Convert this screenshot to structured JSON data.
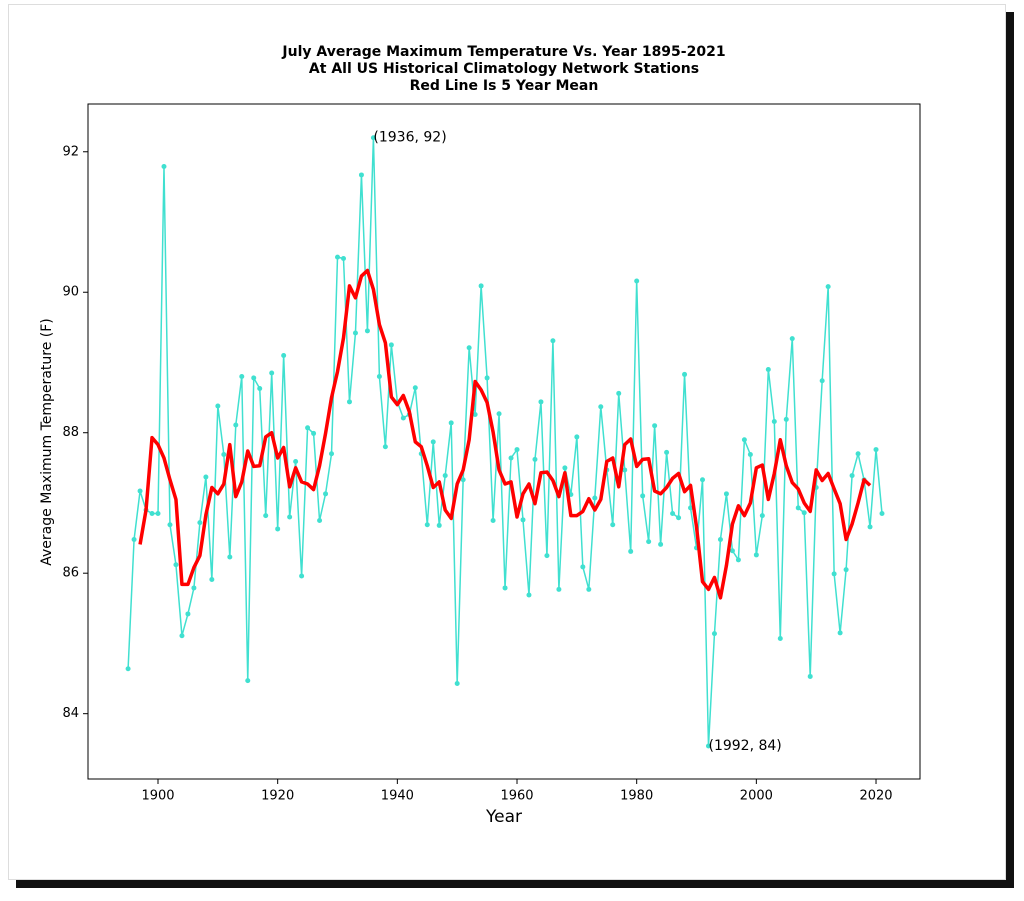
{
  "chart_data": {
    "type": "line",
    "title": [
      "July Average Maximum Temperature Vs. Year 1895-2021",
      "At All US Historical Climatology Network Stations",
      "Red Line Is 5 Year Mean"
    ],
    "x_label": "Year",
    "y_label": "Average Maximum Temperature (F)",
    "xlim": [
      1888.3,
      2027.35
    ],
    "ylim": [
      83.07,
      92.68
    ],
    "xticks": [
      1900,
      1920,
      1940,
      1960,
      1980,
      2000,
      2020
    ],
    "yticks": [
      84,
      86,
      88,
      90,
      92
    ],
    "grid": false,
    "series": [
      {
        "color": "#40e0d0",
        "markers": true,
        "line_width": 1.5,
        "x": [
          1895,
          1896,
          1897,
          1898,
          1899,
          1900,
          1901,
          1902,
          1903,
          1904,
          1905,
          1906,
          1907,
          1908,
          1909,
          1910,
          1911,
          1912,
          1913,
          1914,
          1915,
          1916,
          1917,
          1918,
          1919,
          1920,
          1921,
          1922,
          1923,
          1924,
          1925,
          1926,
          1927,
          1928,
          1929,
          1930,
          1931,
          1932,
          1933,
          1934,
          1935,
          1936,
          1937,
          1938,
          1939,
          1940,
          1941,
          1942,
          1943,
          1944,
          1945,
          1946,
          1947,
          1948,
          1949,
          1950,
          1951,
          1952,
          1953,
          1954,
          1955,
          1956,
          1957,
          1958,
          1959,
          1960,
          1961,
          1962,
          1963,
          1964,
          1965,
          1966,
          1967,
          1968,
          1969,
          1970,
          1971,
          1972,
          1973,
          1974,
          1975,
          1976,
          1977,
          1978,
          1979,
          1980,
          1981,
          1982,
          1983,
          1984,
          1985,
          1986,
          1987,
          1988,
          1989,
          1990,
          1991,
          1992,
          1993,
          1994,
          1995,
          1996,
          1997,
          1998,
          1999,
          2000,
          2001,
          2002,
          2003,
          2004,
          2005,
          2006,
          2007,
          2008,
          2009,
          2010,
          2011,
          2012,
          2013,
          2014,
          2015,
          2016,
          2017,
          2018,
          2019,
          2020,
          2021
        ],
        "values": [
          84.64,
          86.48,
          87.17,
          86.9,
          86.85,
          86.85,
          91.79,
          86.69,
          86.12,
          85.11,
          85.42,
          85.79,
          86.72,
          87.37,
          85.91,
          88.38,
          87.69,
          86.23,
          88.11,
          88.8,
          84.47,
          88.78,
          88.63,
          86.82,
          88.85,
          86.63,
          89.1,
          86.8,
          87.59,
          85.96,
          88.07,
          87.99,
          86.75,
          87.13,
          87.7,
          90.5,
          90.48,
          88.44,
          89.42,
          91.67,
          89.45,
          92.2,
          88.8,
          87.8,
          89.25,
          88.44,
          88.21,
          88.26,
          88.64,
          87.7,
          86.69,
          87.87,
          86.68,
          87.39,
          88.14,
          84.43,
          87.33,
          89.21,
          88.26,
          90.09,
          88.78,
          86.75,
          88.27,
          85.79,
          87.64,
          87.76,
          86.76,
          85.69,
          87.62,
          88.44,
          86.25,
          89.31,
          85.77,
          87.5,
          87.12,
          87.94,
          86.09,
          85.77,
          87.07,
          88.37,
          87.47,
          86.69,
          88.56,
          87.47,
          86.31,
          90.16,
          87.1,
          86.45,
          88.1,
          86.41,
          87.72,
          86.85,
          86.79,
          88.83,
          86.93,
          86.36,
          87.33,
          83.54,
          85.14,
          86.48,
          87.13,
          86.32,
          86.19,
          87.9,
          87.69,
          86.26,
          86.82,
          88.9,
          88.16,
          85.07,
          88.19,
          89.34,
          86.93,
          86.86,
          84.53,
          87.22,
          88.74,
          90.08,
          85.99,
          85.15,
          86.05,
          87.39,
          87.7,
          87.33,
          86.66,
          87.76,
          86.85
        ]
      },
      {
        "color": "#ff0000",
        "markers": false,
        "line_width": 3.5,
        "x": [
          1897,
          1898,
          1899,
          1900,
          1901,
          1902,
          1903,
          1904,
          1905,
          1906,
          1907,
          1908,
          1909,
          1910,
          1911,
          1912,
          1913,
          1914,
          1915,
          1916,
          1917,
          1918,
          1919,
          1920,
          1921,
          1922,
          1923,
          1924,
          1925,
          1926,
          1927,
          1928,
          1929,
          1930,
          1931,
          1932,
          1933,
          1934,
          1935,
          1936,
          1937,
          1938,
          1939,
          1940,
          1941,
          1942,
          1943,
          1944,
          1945,
          1946,
          1947,
          1948,
          1949,
          1950,
          1951,
          1952,
          1953,
          1954,
          1955,
          1956,
          1957,
          1958,
          1959,
          1960,
          1961,
          1962,
          1963,
          1964,
          1965,
          1966,
          1967,
          1968,
          1969,
          1970,
          1971,
          1972,
          1973,
          1974,
          1975,
          1976,
          1977,
          1978,
          1979,
          1980,
          1981,
          1982,
          1983,
          1984,
          1985,
          1986,
          1987,
          1988,
          1989,
          1990,
          1991,
          1992,
          1993,
          1994,
          1995,
          1996,
          1997,
          1998,
          1999,
          2000,
          2001,
          2002,
          2003,
          2004,
          2005,
          2006,
          2007,
          2008,
          2009,
          2010,
          2011,
          2012,
          2013,
          2014,
          2015,
          2016,
          2017,
          2018,
          2019
        ],
        "values": [
          86.41,
          86.9,
          87.93,
          87.83,
          87.64,
          87.33,
          87.05,
          85.84,
          85.84,
          86.08,
          86.25,
          86.83,
          87.22,
          87.13,
          87.27,
          87.83,
          87.09,
          87.3,
          87.74,
          87.52,
          87.53,
          87.94,
          88.0,
          87.64,
          87.79,
          87.23,
          87.5,
          87.3,
          87.27,
          87.19,
          87.53,
          87.99,
          88.5,
          88.87,
          89.35,
          90.09,
          89.92,
          90.23,
          90.31,
          90.04,
          89.54,
          89.28,
          88.51,
          88.4,
          88.53,
          88.3,
          87.87,
          87.8,
          87.53,
          87.22,
          87.3,
          86.9,
          86.78,
          87.27,
          87.47,
          87.9,
          88.73,
          88.61,
          88.43,
          88.01,
          87.47,
          87.27,
          87.3,
          86.8,
          87.13,
          87.27,
          86.99,
          87.43,
          87.44,
          87.32,
          87.09,
          87.43,
          86.82,
          86.82,
          86.88,
          87.06,
          86.9,
          87.05,
          87.59,
          87.64,
          87.23,
          87.83,
          87.91,
          87.52,
          87.62,
          87.63,
          87.17,
          87.13,
          87.22,
          87.35,
          87.42,
          87.16,
          87.25,
          86.66,
          85.88,
          85.77,
          85.94,
          85.65,
          86.11,
          86.7,
          86.96,
          86.82,
          87.0,
          87.5,
          87.54,
          87.05,
          87.42,
          87.9,
          87.53,
          87.29,
          87.2,
          87.0,
          86.88,
          87.47,
          87.32,
          87.42,
          87.2,
          86.99,
          86.48,
          86.7,
          87.0,
          87.33,
          87.25
        ]
      }
    ],
    "annotations": [
      {
        "text": "(1936, 92)",
        "x": 1936,
        "y": 92.2
      },
      {
        "text": "(1992, 84)",
        "x": 1992,
        "y": 83.54
      }
    ]
  }
}
